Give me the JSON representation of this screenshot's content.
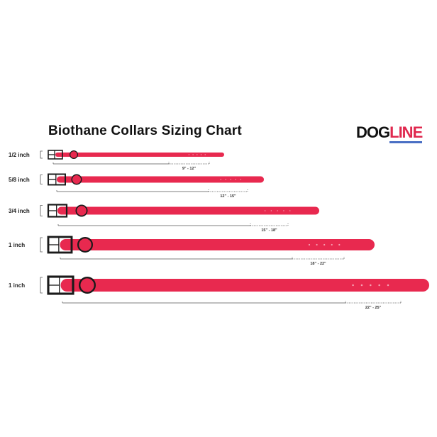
{
  "title": "Biothane Collars Sizing Chart",
  "logo": {
    "part1": "DOG",
    "part2": "LINE"
  },
  "colors": {
    "strap": "#e8294f",
    "buckle": "#1a1a1a",
    "logo_accent": "#e0284e",
    "logo_underline": "#4a6fc4"
  },
  "collars": [
    {
      "width_label": "1/2 inch",
      "size_range": "9\" - 12\""
    },
    {
      "width_label": "5/8 inch",
      "size_range": "12\" - 15\""
    },
    {
      "width_label": "3/4 inch",
      "size_range": "15\" - 18\""
    },
    {
      "width_label": "1 inch",
      "size_range": "18\" - 22\""
    },
    {
      "width_label": "1 inch",
      "size_range": "22\" - 25\""
    }
  ]
}
